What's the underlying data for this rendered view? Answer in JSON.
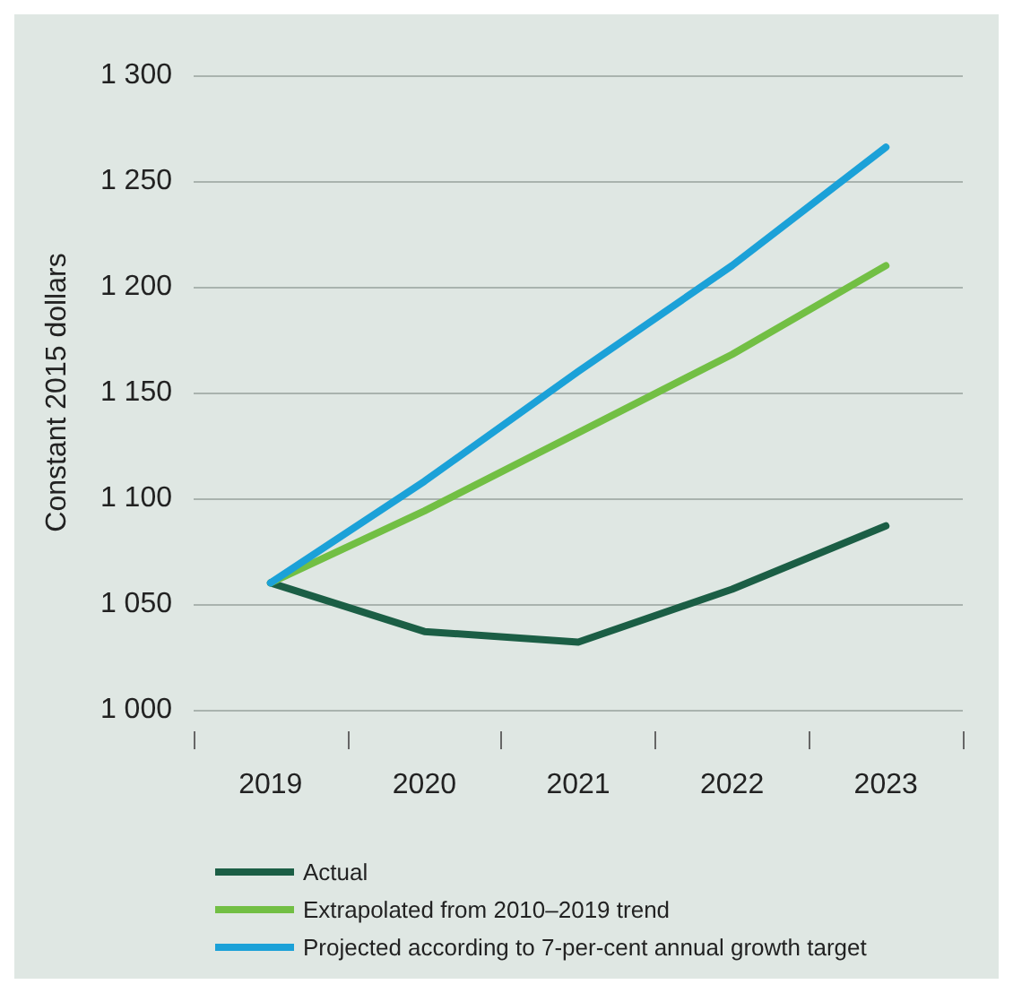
{
  "chart_data": {
    "type": "line",
    "ylabel": "Constant 2015 dollars",
    "categories": [
      "2019",
      "2020",
      "2021",
      "2022",
      "2023"
    ],
    "series": [
      {
        "name": "Actual",
        "color": "#1b5e45",
        "values": [
          1060,
          1037,
          1032,
          1057,
          1087
        ]
      },
      {
        "name": "Extrapolated from 2010–2019 trend",
        "color": "#72bf44",
        "values": [
          1060,
          1094,
          1131,
          1168,
          1210
        ]
      },
      {
        "name": "Projected according to 7-per-cent annual growth target",
        "color": "#1ba1d8",
        "values": [
          1060,
          1108,
          1160,
          1210,
          1266
        ]
      }
    ],
    "ylim": [
      1000,
      1300
    ],
    "yticks": [
      {
        "value": 1000,
        "label": "1 000"
      },
      {
        "value": 1050,
        "label": "1 050"
      },
      {
        "value": 1100,
        "label": "1 100"
      },
      {
        "value": 1150,
        "label": "1 150"
      },
      {
        "value": 1200,
        "label": "1 200"
      },
      {
        "value": 1250,
        "label": "1 250"
      },
      {
        "value": 1300,
        "label": "1 300"
      }
    ],
    "grid": "y",
    "legend": "bottom",
    "marker": "none",
    "line_style": "solid"
  }
}
